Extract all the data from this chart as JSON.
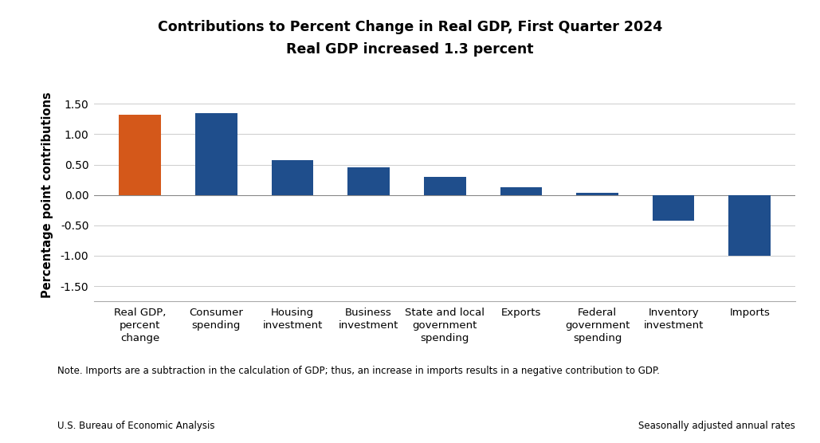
{
  "title_line1": "Contributions to Percent Change in Real GDP, First Quarter 2024",
  "title_line2": "Real GDP increased 1.3 percent",
  "categories": [
    "Real GDP,\npercent\nchange",
    "Consumer\nspending",
    "Housing\ninvestment",
    "Business\ninvestment",
    "State and local\ngovernment\nspending",
    "Exports",
    "Federal\ngovernment\nspending",
    "Inventory\ninvestment",
    "Imports"
  ],
  "values": [
    1.32,
    1.35,
    0.57,
    0.45,
    0.3,
    0.13,
    0.03,
    -0.42,
    -1.0
  ],
  "bar_colors": [
    "#d4581a",
    "#1f4e8c",
    "#1f4e8c",
    "#1f4e8c",
    "#1f4e8c",
    "#1f4e8c",
    "#1f4e8c",
    "#1f4e8c",
    "#1f4e8c"
  ],
  "ylabel": "Percentage point contributions",
  "ylim": [
    -1.75,
    1.75
  ],
  "yticks": [
    -1.5,
    -1.0,
    -0.5,
    0.0,
    0.5,
    1.0,
    1.5
  ],
  "note_text": "Note. Imports are a subtraction in the calculation of GDP; thus, an increase in imports results in a negative contribution to GDP.",
  "source_left": "U.S. Bureau of Economic Analysis",
  "source_right": "Seasonally adjusted annual rates",
  "background_color": "#ffffff",
  "grid_color": "#cccccc"
}
